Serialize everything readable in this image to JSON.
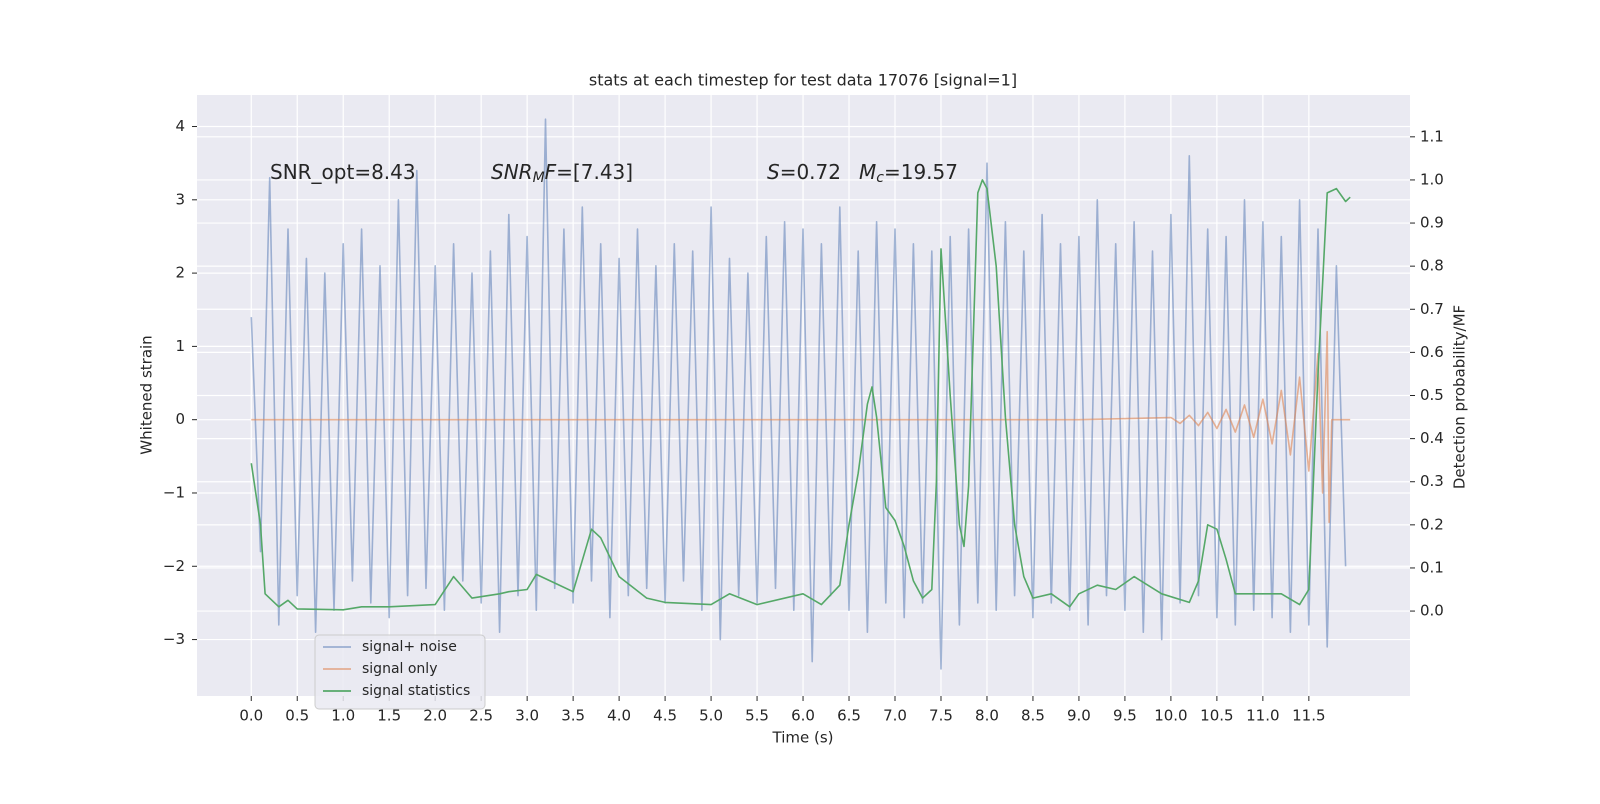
{
  "chart_data": {
    "type": "line",
    "title": "stats at each timestep for test data 17076 [signal=1]",
    "xlabel": "Time (s)",
    "ylabel": "Whitened strain",
    "y2label": "Detection probability/MF",
    "grid": true,
    "legend": "lower left",
    "xlim": [
      -0.59,
      12.6
    ],
    "ylim": [
      -3.77,
      4.43
    ],
    "y2lim": [
      -0.197,
      1.197
    ],
    "xticks": [
      {
        "value": 0,
        "label": "0.0"
      },
      {
        "value": 0.5,
        "label": "0.5"
      },
      {
        "value": 1,
        "label": "1.0"
      },
      {
        "value": 1.5,
        "label": "1.5"
      },
      {
        "value": 2,
        "label": "2.0"
      },
      {
        "value": 2.5,
        "label": "2.5"
      },
      {
        "value": 3,
        "label": "3.0"
      },
      {
        "value": 3.5,
        "label": "3.5"
      },
      {
        "value": 4,
        "label": "4.0"
      },
      {
        "value": 4.5,
        "label": "4.5"
      },
      {
        "value": 5,
        "label": "5.0"
      },
      {
        "value": 5.5,
        "label": "5.5"
      },
      {
        "value": 6,
        "label": "6.0"
      },
      {
        "value": 6.5,
        "label": "6.5"
      },
      {
        "value": 7,
        "label": "7.0"
      },
      {
        "value": 7.5,
        "label": "7.5"
      },
      {
        "value": 8,
        "label": "8.0"
      },
      {
        "value": 8.5,
        "label": "8.5"
      },
      {
        "value": 9,
        "label": "9.0"
      },
      {
        "value": 9.5,
        "label": "9.5"
      },
      {
        "value": 10,
        "label": "10.0"
      },
      {
        "value": 10.5,
        "label": "10.5"
      },
      {
        "value": 11,
        "label": "11.0"
      },
      {
        "value": 11.5,
        "label": "11.5"
      }
    ],
    "yticks": [
      {
        "value": -3,
        "label": "−3"
      },
      {
        "value": -2,
        "label": "−2"
      },
      {
        "value": -1,
        "label": "−1"
      },
      0,
      1,
      2,
      3,
      4
    ],
    "y2ticks": [
      {
        "value": 0,
        "label": "0.0"
      },
      {
        "value": 0.1,
        "label": "0.1"
      },
      {
        "value": 0.2,
        "label": "0.2"
      },
      {
        "value": 0.3,
        "label": "0.3"
      },
      {
        "value": 0.4,
        "label": "0.4"
      },
      {
        "value": 0.5,
        "label": "0.5"
      },
      {
        "value": 0.6,
        "label": "0.6"
      },
      {
        "value": 0.7,
        "label": "0.7"
      },
      {
        "value": 0.8,
        "label": "0.8"
      },
      {
        "value": 0.9,
        "label": "0.9"
      },
      {
        "value": 1,
        "label": "1.0"
      },
      {
        "value": 1.1,
        "label": "1.1"
      }
    ],
    "annotations": [
      [
        {
          "text": "SNR_opt=8.43"
        }
      ],
      [
        {
          "text": "SNR",
          "style": "italic"
        },
        {
          "text": "M",
          "style": "italic-sub"
        },
        {
          "text": "F",
          "style": "italic"
        },
        {
          "text": "=[7.43]"
        }
      ],
      [
        {
          "text": "S",
          "style": "italic"
        },
        {
          "text": "=0.72"
        }
      ],
      [
        {
          "text": "M",
          "style": "italic"
        },
        {
          "text": "c",
          "style": "italic-sub"
        },
        {
          "text": "=19.57"
        }
      ]
    ],
    "series": [
      {
        "name": "signal+ noise",
        "color": "#4c72b0",
        "opacity": 0.5,
        "x": [
          0.0,
          0.1,
          0.2,
          0.3,
          0.4,
          0.5,
          0.6,
          0.7,
          0.8,
          0.9,
          1.0,
          1.1,
          1.2,
          1.3,
          1.4,
          1.5,
          1.6,
          1.7,
          1.8,
          1.9,
          2.0,
          2.1,
          2.2,
          2.3,
          2.4,
          2.5,
          2.6,
          2.7,
          2.8,
          2.9,
          3.0,
          3.1,
          3.2,
          3.3,
          3.4,
          3.5,
          3.6,
          3.7,
          3.8,
          3.9,
          4.0,
          4.1,
          4.2,
          4.3,
          4.4,
          4.5,
          4.6,
          4.7,
          4.8,
          4.9,
          5.0,
          5.1,
          5.2,
          5.3,
          5.4,
          5.5,
          5.6,
          5.7,
          5.8,
          5.9,
          6.0,
          6.1,
          6.2,
          6.3,
          6.4,
          6.5,
          6.6,
          6.7,
          6.8,
          6.9,
          7.0,
          7.1,
          7.2,
          7.3,
          7.4,
          7.5,
          7.6,
          7.7,
          7.8,
          7.9,
          8.0,
          8.1,
          8.2,
          8.3,
          8.4,
          8.5,
          8.6,
          8.7,
          8.8,
          8.9,
          9.0,
          9.1,
          9.2,
          9.3,
          9.4,
          9.5,
          9.6,
          9.7,
          9.8,
          9.9,
          10.0,
          10.1,
          10.2,
          10.3,
          10.4,
          10.5,
          10.6,
          10.7,
          10.8,
          10.9,
          11.0,
          11.1,
          11.2,
          11.3,
          11.4,
          11.5,
          11.6,
          11.7,
          11.8,
          11.9
        ],
        "values": [
          1.4,
          -1.8,
          3.3,
          -2.8,
          2.6,
          -2.4,
          2.2,
          -2.9,
          2.0,
          -2.6,
          2.4,
          -2.2,
          2.6,
          -2.5,
          2.1,
          -2.7,
          3.0,
          -2.4,
          3.4,
          -2.3,
          2.1,
          -2.6,
          2.4,
          -2.2,
          2.0,
          -2.5,
          2.3,
          -2.9,
          2.8,
          -2.4,
          2.5,
          -2.6,
          4.1,
          -2.3,
          2.6,
          -2.5,
          2.9,
          -2.2,
          2.4,
          -2.7,
          2.2,
          -2.4,
          2.6,
          -2.3,
          2.1,
          -2.5,
          2.4,
          -2.2,
          2.3,
          -2.6,
          2.9,
          -3.0,
          2.2,
          -2.4,
          2.0,
          -2.5,
          2.5,
          -2.3,
          2.7,
          -2.6,
          2.6,
          -3.3,
          2.4,
          -2.4,
          2.9,
          -2.6,
          2.3,
          -2.9,
          2.7,
          -2.5,
          2.6,
          -2.7,
          2.4,
          -2.5,
          2.3,
          -3.4,
          2.5,
          -2.8,
          2.6,
          -2.5,
          3.5,
          -2.6,
          2.7,
          -2.4,
          2.3,
          -2.7,
          2.8,
          -2.5,
          2.4,
          -2.6,
          2.5,
          -2.8,
          3.0,
          -2.4,
          2.4,
          -2.6,
          2.7,
          -2.9,
          2.3,
          -3.0,
          2.8,
          -2.5,
          3.6,
          -2.4,
          2.6,
          -2.7,
          2.5,
          -2.8,
          3.0,
          -2.6,
          2.7,
          -2.7,
          2.5,
          -2.9,
          3.0,
          -2.8,
          2.6,
          -3.1,
          2.1,
          -2.0
        ]
      },
      {
        "name": "signal only",
        "color": "#dd8452",
        "opacity": 0.6,
        "x": [
          0.0,
          9.0,
          10.0,
          10.1,
          10.2,
          10.3,
          10.4,
          10.5,
          10.6,
          10.7,
          10.8,
          10.9,
          11.0,
          11.1,
          11.2,
          11.3,
          11.4,
          11.5,
          11.6,
          11.65,
          11.7,
          11.72,
          11.75,
          11.95
        ],
        "values": [
          0,
          0,
          0.03,
          -0.05,
          0.06,
          -0.08,
          0.1,
          -0.12,
          0.14,
          -0.17,
          0.2,
          -0.24,
          0.28,
          -0.33,
          0.4,
          -0.48,
          0.58,
          -0.7,
          0.9,
          -1.0,
          1.2,
          -1.4,
          0,
          0
        ]
      },
      {
        "name": "signal statistics",
        "color": "#55a868",
        "axis": "y2",
        "x": [
          0,
          0.1,
          0.15,
          0.3,
          0.4,
          0.5,
          1.0,
          1.2,
          1.5,
          2.0,
          2.2,
          2.4,
          2.7,
          2.8,
          3.0,
          3.1,
          3.3,
          3.5,
          3.7,
          3.8,
          4.0,
          4.3,
          4.5,
          5.0,
          5.2,
          5.5,
          6.0,
          6.2,
          6.4,
          6.5,
          6.6,
          6.7,
          6.75,
          6.8,
          6.9,
          7.0,
          7.1,
          7.2,
          7.3,
          7.4,
          7.45,
          7.5,
          7.6,
          7.7,
          7.75,
          7.8,
          7.9,
          7.95,
          8.0,
          8.1,
          8.2,
          8.3,
          8.4,
          8.5,
          8.7,
          8.9,
          9.0,
          9.2,
          9.4,
          9.6,
          9.9,
          10.2,
          10.3,
          10.4,
          10.5,
          10.6,
          10.7,
          11.0,
          11.2,
          11.4,
          11.5,
          11.6,
          11.7,
          11.8,
          11.9,
          11.95
        ],
        "values": [
          0.343,
          0.2,
          0.04,
          0.01,
          0.025,
          0.005,
          0.003,
          0.01,
          0.01,
          0.015,
          0.08,
          0.03,
          0.04,
          0.045,
          0.05,
          0.085,
          0.065,
          0.045,
          0.19,
          0.17,
          0.08,
          0.03,
          0.02,
          0.015,
          0.04,
          0.015,
          0.04,
          0.015,
          0.06,
          0.2,
          0.32,
          0.48,
          0.52,
          0.45,
          0.24,
          0.21,
          0.15,
          0.07,
          0.03,
          0.05,
          0.3,
          0.84,
          0.5,
          0.2,
          0.15,
          0.29,
          0.97,
          1.0,
          0.98,
          0.8,
          0.45,
          0.2,
          0.08,
          0.03,
          0.04,
          0.01,
          0.04,
          0.06,
          0.05,
          0.08,
          0.04,
          0.02,
          0.07,
          0.2,
          0.19,
          0.12,
          0.04,
          0.04,
          0.04,
          0.015,
          0.05,
          0.55,
          0.97,
          0.98,
          0.95,
          0.96
        ]
      }
    ]
  }
}
